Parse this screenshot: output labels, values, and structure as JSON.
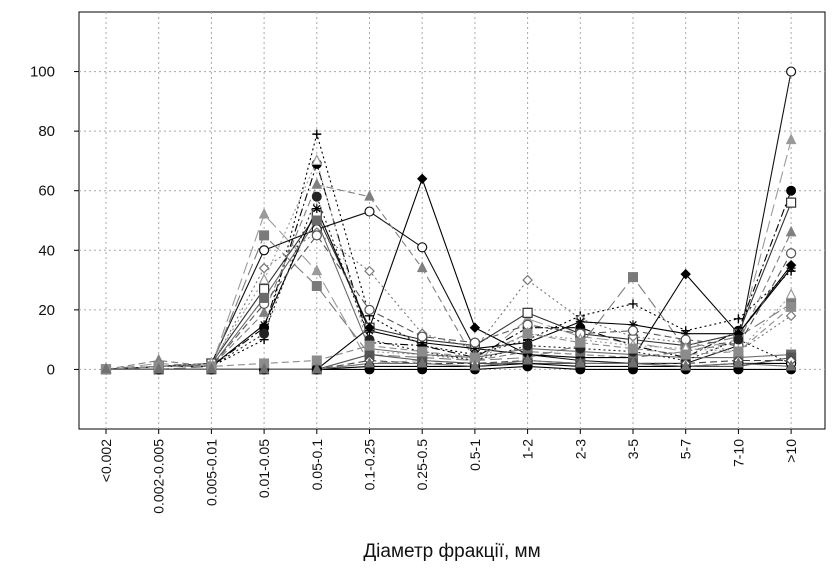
{
  "chart_data": {
    "type": "line",
    "title": "",
    "xlabel": "Діаметр фракції, мм",
    "ylabel": "",
    "ylim": [
      -20,
      120
    ],
    "yticks": [
      0,
      20,
      40,
      60,
      80,
      100
    ],
    "grid": true,
    "legend": "none",
    "categories": [
      "<0.002",
      "0.002-0.005",
      "0.005-0.01",
      "0.01-0.05",
      "0.05-0.1",
      "0.1-0.25",
      "0.25-0.5",
      "0.5-1",
      "1-2",
      "2-3",
      "3-5",
      "5-7",
      "7-10",
      ">10"
    ],
    "series": [
      {
        "marker": "circle-open",
        "color": "#111111",
        "dash": "solid",
        "values": [
          0,
          1,
          2,
          40,
          47,
          53,
          41,
          7,
          5,
          3,
          2,
          2,
          8,
          100
        ]
      },
      {
        "marker": "triangle",
        "color": "#9a9a9a",
        "dash": "long-dash",
        "values": [
          0,
          2,
          1,
          52,
          33,
          2,
          3,
          2,
          17,
          11,
          9,
          6,
          10,
          77
        ]
      },
      {
        "marker": "circle",
        "color": "#000000",
        "dash": "dash-dot",
        "values": [
          0,
          1,
          1,
          14,
          69,
          9,
          8,
          4,
          14,
          14,
          8,
          4,
          13,
          60
        ]
      },
      {
        "marker": "square-open",
        "color": "#333333",
        "dash": "solid",
        "values": [
          0,
          1,
          2,
          27,
          52,
          14,
          10,
          8,
          19,
          12,
          10,
          8,
          12,
          56
        ]
      },
      {
        "marker": "plus",
        "color": "#000000",
        "dash": "dotted",
        "values": [
          0,
          1,
          1,
          10,
          79,
          18,
          8,
          5,
          10,
          18,
          22,
          13,
          17,
          33
        ]
      },
      {
        "marker": "triangle",
        "color": "#808080",
        "dash": "dashed",
        "values": [
          0,
          3,
          1,
          19,
          62,
          58,
          34,
          3,
          6,
          5,
          4,
          6,
          9,
          46
        ]
      },
      {
        "marker": "square",
        "color": "#7a7a7a",
        "dash": "long-dash",
        "values": [
          0,
          0,
          1,
          45,
          28,
          5,
          4,
          3,
          4,
          8,
          31,
          7,
          11,
          22
        ]
      },
      {
        "marker": "diamond",
        "color": "#000000",
        "dash": "solid",
        "values": [
          0,
          0,
          0,
          0,
          0,
          14,
          64,
          14,
          5,
          4,
          4,
          32,
          12,
          35
        ]
      },
      {
        "marker": "diamond-open",
        "color": "#777777",
        "dash": "dotted",
        "values": [
          0,
          1,
          1,
          34,
          46,
          33,
          12,
          7,
          30,
          17,
          11,
          9,
          6,
          18
        ]
      },
      {
        "marker": "star",
        "color": "#000000",
        "dash": "solid",
        "values": [
          0,
          1,
          1,
          15,
          54,
          13,
          9,
          7,
          9,
          16,
          15,
          12,
          12,
          34
        ]
      },
      {
        "marker": "circle-open",
        "color": "#555555",
        "dash": "dashed",
        "values": [
          0,
          1,
          1,
          22,
          45,
          20,
          11,
          9,
          15,
          12,
          13,
          10,
          8,
          39
        ]
      },
      {
        "marker": "triangle-open",
        "color": "#9a9a9a",
        "dash": "dotted",
        "values": [
          0,
          1,
          2,
          30,
          70,
          6,
          5,
          3,
          12,
          10,
          8,
          7,
          6,
          25
        ]
      },
      {
        "marker": "square",
        "color": "#6a6a6a",
        "dash": "solid",
        "values": [
          0,
          1,
          1,
          24,
          50,
          7,
          5,
          4,
          7,
          6,
          5,
          4,
          4,
          5
        ]
      },
      {
        "marker": "circle",
        "color": "#222222",
        "dash": "dotted",
        "values": [
          0,
          1,
          1,
          12,
          58,
          10,
          6,
          3,
          8,
          7,
          6,
          3,
          10,
          2
        ]
      },
      {
        "marker": "square",
        "color": "#555555",
        "dash": "solid",
        "values": [
          0,
          0,
          0,
          0,
          0,
          5,
          3,
          2,
          2,
          2,
          2,
          1,
          1,
          4
        ]
      },
      {
        "marker": "circle-open",
        "color": "#000000",
        "dash": "solid",
        "values": [
          0,
          0,
          0,
          0,
          0,
          1,
          1,
          1,
          2,
          1,
          1,
          1,
          2,
          2
        ]
      },
      {
        "marker": "diamond-open",
        "color": "#444444",
        "dash": "dashed",
        "values": [
          0,
          0,
          0,
          0,
          0,
          3,
          2,
          2,
          3,
          2,
          2,
          2,
          3,
          3
        ]
      },
      {
        "marker": "circle",
        "color": "#000000",
        "dash": "solid",
        "values": [
          0,
          0,
          0,
          0,
          0,
          0,
          0,
          0,
          1,
          0,
          0,
          0,
          0,
          0
        ]
      },
      {
        "marker": "square",
        "color": "#8c8c8c",
        "dash": "dashed",
        "values": [
          0,
          1,
          1,
          2,
          3,
          8,
          6,
          4,
          12,
          9,
          7,
          5,
          6,
          21
        ]
      },
      {
        "marker": "triangle",
        "color": "#707070",
        "dash": "solid",
        "values": [
          0,
          0,
          0,
          0,
          0,
          2,
          2,
          1,
          3,
          2,
          2,
          1,
          2,
          1
        ]
      }
    ]
  }
}
